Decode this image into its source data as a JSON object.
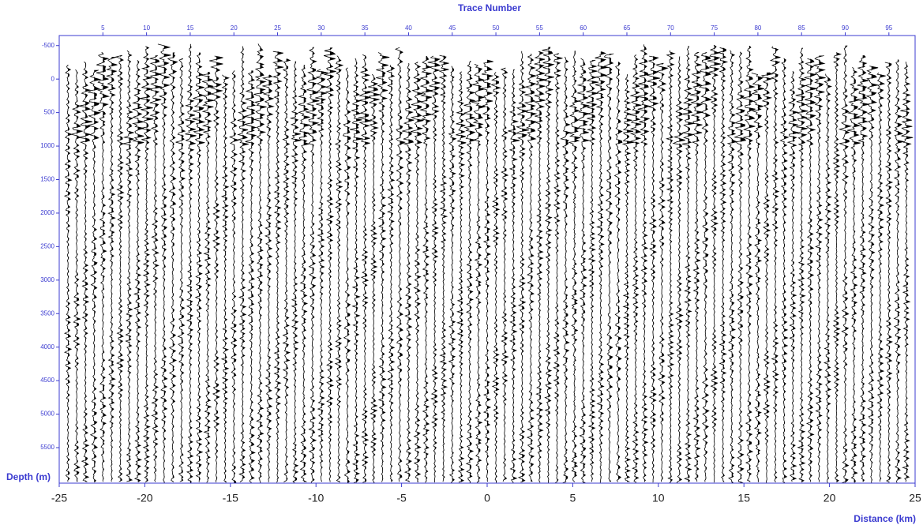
{
  "chart_data": {
    "type": "seismic",
    "x2label": "Trace Number",
    "ylabel": "Depth (m)",
    "xlabel": "Distance (km)",
    "axis_color": "#3b3bd0",
    "trace_color": "#000000",
    "xlim": [
      -25,
      25
    ],
    "xticks": [
      -25,
      -20,
      -15,
      -10,
      -5,
      0,
      5,
      10,
      15,
      20,
      25
    ],
    "x2lim": [
      0,
      98
    ],
    "x2ticks": [
      5,
      10,
      15,
      20,
      25,
      30,
      35,
      40,
      45,
      50,
      55,
      60,
      65,
      70,
      75,
      80,
      85,
      90,
      95
    ],
    "ylim": [
      -650,
      6030
    ],
    "y_inverted": true,
    "yticks": [
      -500,
      0,
      500,
      1000,
      1500,
      2000,
      2500,
      3000,
      3500,
      4000,
      4500,
      5000,
      5500
    ]
  }
}
